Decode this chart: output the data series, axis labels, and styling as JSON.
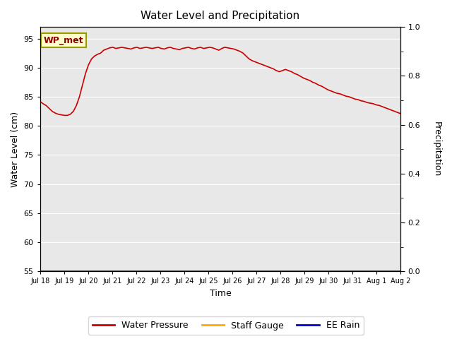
{
  "title": "Water Level and Precipitation",
  "xlabel": "Time",
  "ylabel_left": "Water Level (cm)",
  "ylabel_right": "Precipitation",
  "annotation_text": "WP_met",
  "bg_color": "#e8e8e8",
  "line_color_wp": "#cc0000",
  "line_color_sg": "#ffaa00",
  "line_color_rain": "#0000cc",
  "ylim_left": [
    55,
    97
  ],
  "ylim_right": [
    0.0,
    1.0
  ],
  "yticks_left": [
    55,
    60,
    65,
    70,
    75,
    80,
    85,
    90,
    95
  ],
  "yticks_right": [
    0.0,
    0.2,
    0.4,
    0.6,
    0.8,
    1.0
  ],
  "legend_labels": [
    "Water Pressure",
    "Staff Gauge",
    "EE Rain"
  ],
  "legend_colors": [
    "#cc0000",
    "#ffaa00",
    "#0000cc"
  ],
  "wp_data": [
    84.2,
    83.8,
    83.5,
    83.0,
    82.5,
    82.2,
    82.0,
    81.9,
    81.8,
    81.8,
    82.0,
    82.5,
    83.5,
    85.0,
    87.0,
    89.0,
    90.5,
    91.5,
    92.0,
    92.3,
    92.5,
    93.0,
    93.2,
    93.4,
    93.5,
    93.3,
    93.4,
    93.5,
    93.4,
    93.3,
    93.2,
    93.4,
    93.5,
    93.3,
    93.4,
    93.5,
    93.4,
    93.3,
    93.4,
    93.5,
    93.3,
    93.2,
    93.4,
    93.5,
    93.3,
    93.2,
    93.1,
    93.3,
    93.4,
    93.5,
    93.3,
    93.2,
    93.4,
    93.5,
    93.3,
    93.4,
    93.5,
    93.4,
    93.2,
    93.0,
    93.3,
    93.5,
    93.4,
    93.3,
    93.2,
    93.0,
    92.8,
    92.5,
    92.0,
    91.5,
    91.2,
    91.0,
    90.8,
    90.6,
    90.4,
    90.2,
    90.0,
    89.8,
    89.5,
    89.3,
    89.5,
    89.7,
    89.5,
    89.3,
    89.0,
    88.8,
    88.5,
    88.2,
    88.0,
    87.8,
    87.5,
    87.3,
    87.0,
    86.8,
    86.5,
    86.2,
    86.0,
    85.8,
    85.6,
    85.5,
    85.3,
    85.1,
    85.0,
    84.8,
    84.6,
    84.5,
    84.3,
    84.2,
    84.0,
    83.9,
    83.8,
    83.6,
    83.5,
    83.3,
    83.1,
    82.9,
    82.7,
    82.5,
    82.3,
    82.1
  ]
}
